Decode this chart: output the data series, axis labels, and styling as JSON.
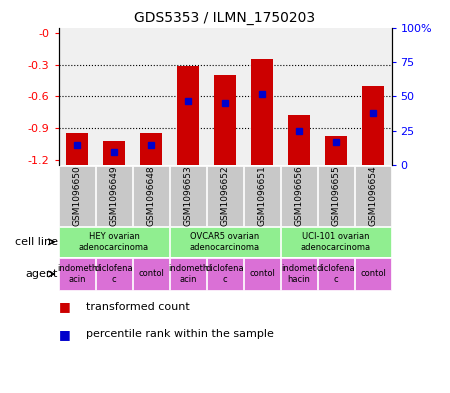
{
  "title": "GDS5353 / ILMN_1750203",
  "samples": [
    "GSM1096650",
    "GSM1096649",
    "GSM1096648",
    "GSM1096653",
    "GSM1096652",
    "GSM1096651",
    "GSM1096656",
    "GSM1096655",
    "GSM1096654"
  ],
  "transformed_counts": [
    -0.95,
    -1.02,
    -0.95,
    -0.31,
    -0.4,
    -0.25,
    -0.78,
    -0.97,
    -0.5
  ],
  "percentile_ranks": [
    15,
    10,
    15,
    47,
    45,
    52,
    25,
    17,
    38
  ],
  "ylim_left": [
    -1.25,
    0.05
  ],
  "ylim_right": [
    0,
    100
  ],
  "yticks_left": [
    -1.2,
    -0.9,
    -0.6,
    -0.3,
    0.0
  ],
  "yticks_right": [
    0,
    25,
    50,
    75,
    100
  ],
  "ytick_labels_left": [
    "-1.2",
    "-0.9",
    "-0.6",
    "-0.3",
    "-0"
  ],
  "ytick_labels_right": [
    "0",
    "25",
    "50",
    "75",
    "100%"
  ],
  "bar_color": "#cc0000",
  "blue_color": "#0000cc",
  "grey_box_color": "#c8c8c8",
  "cell_line_color": "#90ee90",
  "agent_color": "#da70d6",
  "cell_line_groups": [
    {
      "label": "HEY ovarian\nadenocarcinoma",
      "start": 0,
      "end": 3
    },
    {
      "label": "OVCAR5 ovarian\nadenocarcinoma",
      "start": 3,
      "end": 6
    },
    {
      "label": "UCI-101 ovarian\nadenocarcinoma",
      "start": 6,
      "end": 9
    }
  ],
  "agent_groups": [
    {
      "label": "indometh\nacin",
      "start": 0,
      "end": 1
    },
    {
      "label": "diclofena\nc",
      "start": 1,
      "end": 2
    },
    {
      "label": "contol",
      "start": 2,
      "end": 3
    },
    {
      "label": "indometh\nacin",
      "start": 3,
      "end": 4
    },
    {
      "label": "diclofena\nc",
      "start": 4,
      "end": 5
    },
    {
      "label": "contol",
      "start": 5,
      "end": 6
    },
    {
      "label": "indomet\nhacin",
      "start": 6,
      "end": 7
    },
    {
      "label": "diclofena\nc",
      "start": 7,
      "end": 8
    },
    {
      "label": "contol",
      "start": 8,
      "end": 9
    }
  ],
  "legend_red_label": "transformed count",
  "legend_blue_label": "percentile rank within the sample",
  "cell_line_label": "cell line",
  "agent_label": "agent",
  "background_color": "#ffffff",
  "chart_bg_color": "#f0f0f0"
}
